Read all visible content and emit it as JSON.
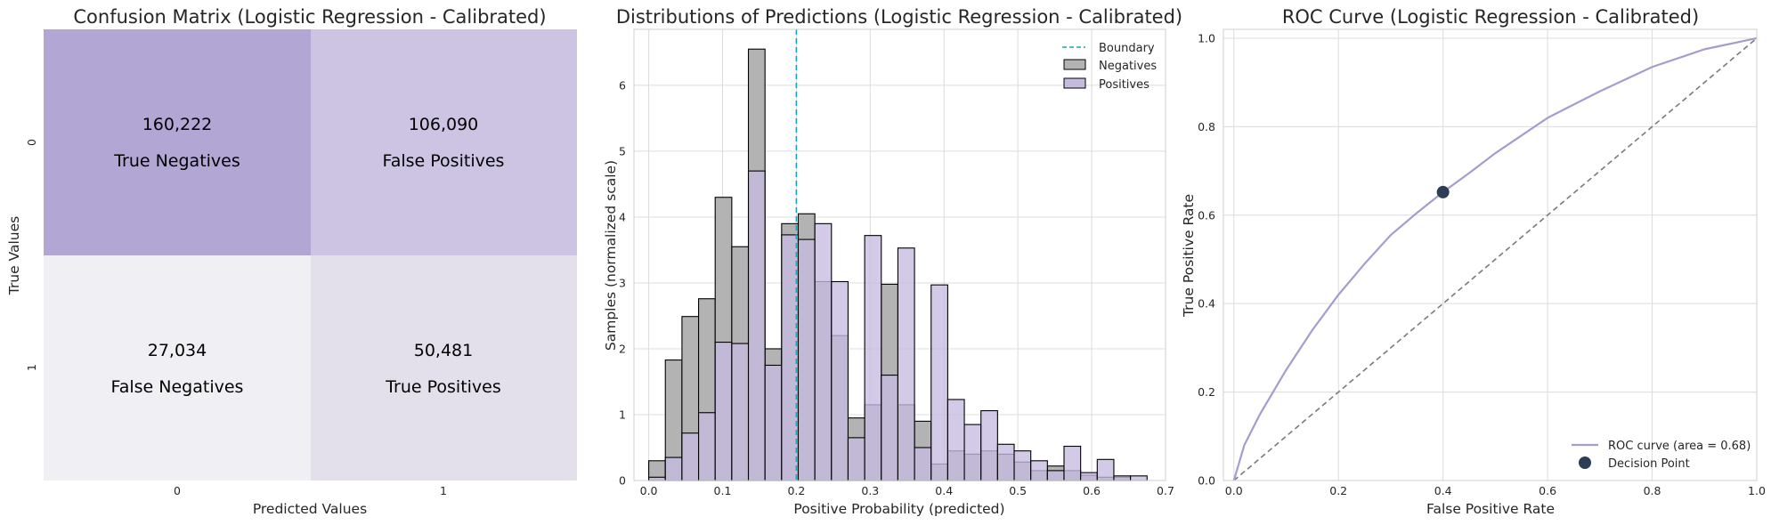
{
  "chart_data": [
    {
      "type": "heatmap",
      "title": "Confusion Matrix (Logistic Regression - Calibrated)",
      "xlabel": "Predicted Values",
      "ylabel": "True Values",
      "x_categories": [
        "0",
        "1"
      ],
      "y_categories": [
        "0",
        "1"
      ],
      "cells": [
        {
          "row": 0,
          "col": 0,
          "value": "160,222",
          "label": "True Negatives",
          "color": "#b2a6d4"
        },
        {
          "row": 0,
          "col": 1,
          "value": "106,090",
          "label": "False Positives",
          "color": "#ccc4e2"
        },
        {
          "row": 1,
          "col": 0,
          "value": "27,034",
          "label": "False Negatives",
          "color": "#f0eff3"
        },
        {
          "row": 1,
          "col": 1,
          "value": "50,481",
          "label": "True Positives",
          "color": "#e3e0ec"
        }
      ]
    },
    {
      "type": "bar",
      "title": "Distributions of Predictions (Logistic Regression - Calibrated)",
      "xlabel": "Positive Probability (predicted)",
      "ylabel": "Samples (normalized scale)",
      "xlim": [
        -0.02,
        0.7
      ],
      "ylim": [
        0,
        6.85
      ],
      "xticks": [
        "0.0",
        "0.1",
        "0.2",
        "0.3",
        "0.4",
        "0.5",
        "0.6",
        "0.7"
      ],
      "yticks": [
        "0",
        "1",
        "2",
        "3",
        "4",
        "5",
        "6"
      ],
      "legend": [
        "Boundary",
        "Negatives",
        "Positives"
      ],
      "legend_position": "top-right",
      "boundary": 0.2,
      "bin_start": 0.0,
      "bin_width": 0.0225,
      "series": [
        {
          "name": "Negatives",
          "color": "#b3b3b3",
          "values": [
            0.3,
            1.83,
            2.49,
            2.76,
            4.3,
            3.55,
            6.55,
            2.0,
            3.9,
            4.05,
            3.02,
            2.2,
            0.95,
            1.15,
            2.98,
            1.15,
            0.9,
            0.25,
            0.45,
            0.4,
            0.45,
            0.4,
            0.28,
            0.15,
            0.22,
            0.15,
            0.08,
            0.05,
            0.05,
            0.0
          ]
        },
        {
          "name": "Positives",
          "color": "#c5bbe0",
          "values": [
            0.05,
            0.35,
            0.72,
            1.03,
            2.1,
            2.08,
            4.7,
            1.75,
            3.73,
            3.66,
            3.9,
            3.02,
            0.65,
            3.72,
            1.6,
            3.53,
            0.5,
            2.97,
            1.23,
            0.85,
            1.06,
            0.55,
            0.45,
            0.3,
            0.15,
            0.52,
            0.12,
            0.32,
            0.07,
            0.07
          ]
        }
      ]
    },
    {
      "type": "line",
      "title": "ROC Curve (Logistic Regression - Calibrated)",
      "xlabel": "False Positive Rate",
      "ylabel": "True Positive Rate",
      "xlim": [
        -0.02,
        1.0
      ],
      "ylim": [
        0,
        1.02
      ],
      "xticks": [
        "0.0",
        "0.2",
        "0.4",
        "0.6",
        "0.8",
        "1.0"
      ],
      "yticks": [
        "0.0",
        "0.2",
        "0.4",
        "0.6",
        "0.8",
        "1.0"
      ],
      "legend": [
        "ROC curve (area = 0.68)",
        "Decision Point"
      ],
      "legend_position": "lower-right",
      "roc": {
        "x": [
          0.0,
          0.02,
          0.05,
          0.1,
          0.15,
          0.2,
          0.25,
          0.3,
          0.35,
          0.4,
          0.45,
          0.5,
          0.6,
          0.7,
          0.8,
          0.9,
          1.0
        ],
        "y": [
          0.0,
          0.08,
          0.15,
          0.25,
          0.34,
          0.42,
          0.49,
          0.555,
          0.605,
          0.652,
          0.695,
          0.74,
          0.82,
          0.88,
          0.935,
          0.975,
          1.0
        ],
        "color": "#a59ccf"
      },
      "diagonal": {
        "x": [
          0.0,
          1.0
        ],
        "y": [
          0.0,
          1.0
        ],
        "color": "#7a7a7a"
      },
      "decision_point": {
        "x": 0.4,
        "y": 0.652,
        "color": "#2c3e55"
      }
    }
  ]
}
